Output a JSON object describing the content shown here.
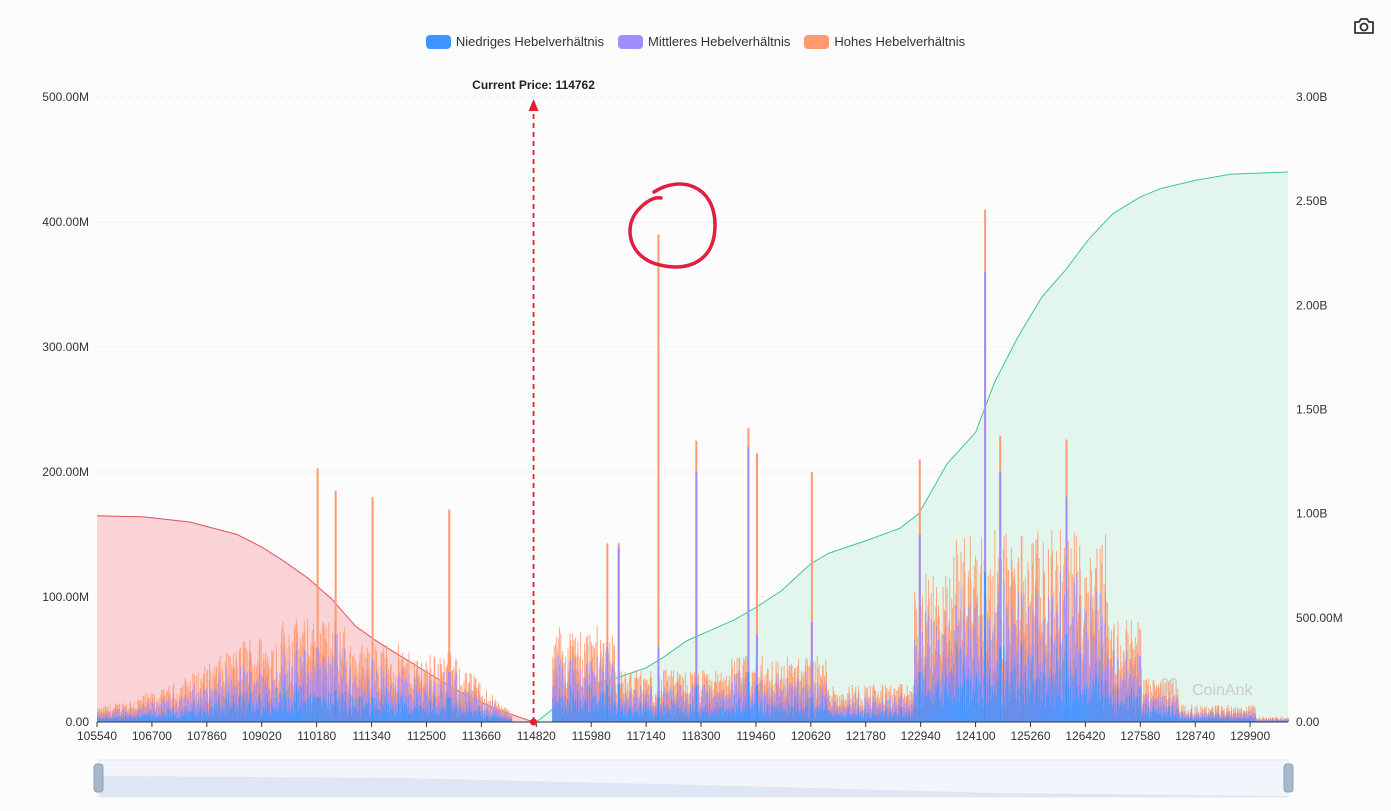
{
  "legend": {
    "low_label": "Niedriges Hebelverhältnis",
    "mid_label": "Mittleres Hebelverhältnis",
    "high_label": "Hohes Hebelverhältnis"
  },
  "watermark": "CoinAnk",
  "icons": {
    "camera": "camera-icon"
  },
  "colors": {
    "low": "#3e95ff",
    "mid": "#a08cfa",
    "high": "#ff9a6e",
    "short_cum_line": "#e05060",
    "short_cum_fill": "#f9d3d6",
    "long_cum_line": "#3cc88a",
    "long_cum_fill": "#e3f6ee",
    "current_price": "#e02030"
  },
  "chart_data": {
    "type": "bar",
    "current_price_label": "Current Price:",
    "current_price": "114762",
    "x_tick_labels": [
      "105540",
      "106700",
      "107860",
      "109020",
      "110180",
      "111340",
      "112500",
      "113660",
      "114820",
      "115980",
      "117140",
      "118300",
      "119460",
      "120620",
      "121780",
      "122940",
      "124100",
      "125260",
      "126420",
      "127580",
      "128740",
      "129900"
    ],
    "x_range": [
      105540,
      130700
    ],
    "left_axis": {
      "ticks": [
        "0.00",
        "100.00M",
        "200.00M",
        "300.00M",
        "400.00M",
        "500.00M"
      ],
      "range": [
        0,
        500
      ]
    },
    "right_axis": {
      "ticks": [
        "0.00",
        "500.00M",
        "1.00B",
        "1.50B",
        "2.00B",
        "2.50B",
        "3.00B"
      ],
      "range": [
        0,
        3000
      ]
    },
    "grid": true,
    "legend_position": "top-center",
    "units_note": "left axis values in millions, right axis cumulative in millions",
    "cumulative_short": {
      "x": [
        105540,
        106500,
        107500,
        108500,
        109020,
        109500,
        110000,
        110500,
        111000,
        111500,
        112000,
        112500,
        113000,
        113500,
        114000,
        114500,
        114762
      ],
      "y": [
        990,
        985,
        960,
        900,
        840,
        770,
        690,
        590,
        460,
        380,
        310,
        240,
        170,
        110,
        60,
        20,
        0
      ]
    },
    "cumulative_long": {
      "x": [
        114820,
        115500,
        116000,
        116500,
        117140,
        117500,
        118000,
        118500,
        119000,
        119460,
        120000,
        120620,
        121000,
        121780,
        122500,
        122900,
        123500,
        124100,
        124500,
        125000,
        125500,
        126000,
        126500,
        127000,
        127580,
        128000,
        128740,
        129500,
        130700
      ],
      "y": [
        0,
        120,
        180,
        210,
        260,
        310,
        390,
        440,
        490,
        550,
        630,
        760,
        810,
        870,
        930,
        1000,
        1240,
        1390,
        1630,
        1850,
        2040,
        2170,
        2320,
        2440,
        2520,
        2560,
        2600,
        2630,
        2640
      ]
    },
    "spikes": [
      {
        "x": 117380,
        "low": 20,
        "mid": 60,
        "high": 390
      },
      {
        "x": 124280,
        "low": 120,
        "mid": 360,
        "high": 410
      },
      {
        "x": 118180,
        "low": 30,
        "mid": 200,
        "high": 225
      },
      {
        "x": 119280,
        "low": 40,
        "mid": 220,
        "high": 235
      },
      {
        "x": 119460,
        "low": 30,
        "mid": 70,
        "high": 215
      },
      {
        "x": 120620,
        "low": 20,
        "mid": 80,
        "high": 200
      },
      {
        "x": 110180,
        "low": 20,
        "mid": 60,
        "high": 203
      },
      {
        "x": 110560,
        "low": 25,
        "mid": 70,
        "high": 185
      },
      {
        "x": 111340,
        "low": 20,
        "mid": 50,
        "high": 180
      },
      {
        "x": 112960,
        "low": 20,
        "mid": 40,
        "high": 170
      },
      {
        "x": 122900,
        "low": 40,
        "mid": 150,
        "high": 210
      },
      {
        "x": 124600,
        "low": 60,
        "mid": 200,
        "high": 229
      },
      {
        "x": 126000,
        "low": 70,
        "mid": 180,
        "high": 226
      },
      {
        "x": 116540,
        "low": 30,
        "mid": 140,
        "high": 143
      },
      {
        "x": 116300,
        "low": 30,
        "mid": 60,
        "high": 143
      }
    ],
    "bar_density_profile": {
      "short_side": {
        "from": 105540,
        "to": 114300
      },
      "gap": {
        "from": 114400,
        "to": 115150
      },
      "long_side": {
        "from": 115150,
        "to": 130700
      }
    }
  }
}
